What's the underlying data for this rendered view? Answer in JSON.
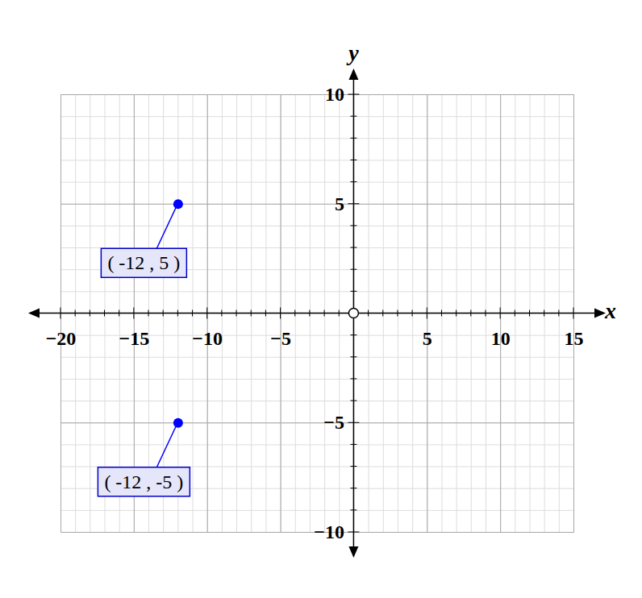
{
  "chart_data": {
    "type": "scatter",
    "x_label": "x",
    "y_label": "y",
    "x": [
      -12,
      -12
    ],
    "values": [
      5,
      -5
    ],
    "data_labels": true,
    "value_labels": [
      "( -12 , 5 )",
      "( -12 , -5 )"
    ],
    "color": "#0000ff",
    "marker": "circle",
    "xlim": [
      -20,
      15
    ],
    "ylim": [
      -10,
      10
    ],
    "xticks": [
      -20,
      -15,
      -10,
      -5,
      5,
      10,
      15
    ],
    "yticks": [
      -10,
      -5,
      5,
      10
    ],
    "grid": true
  }
}
